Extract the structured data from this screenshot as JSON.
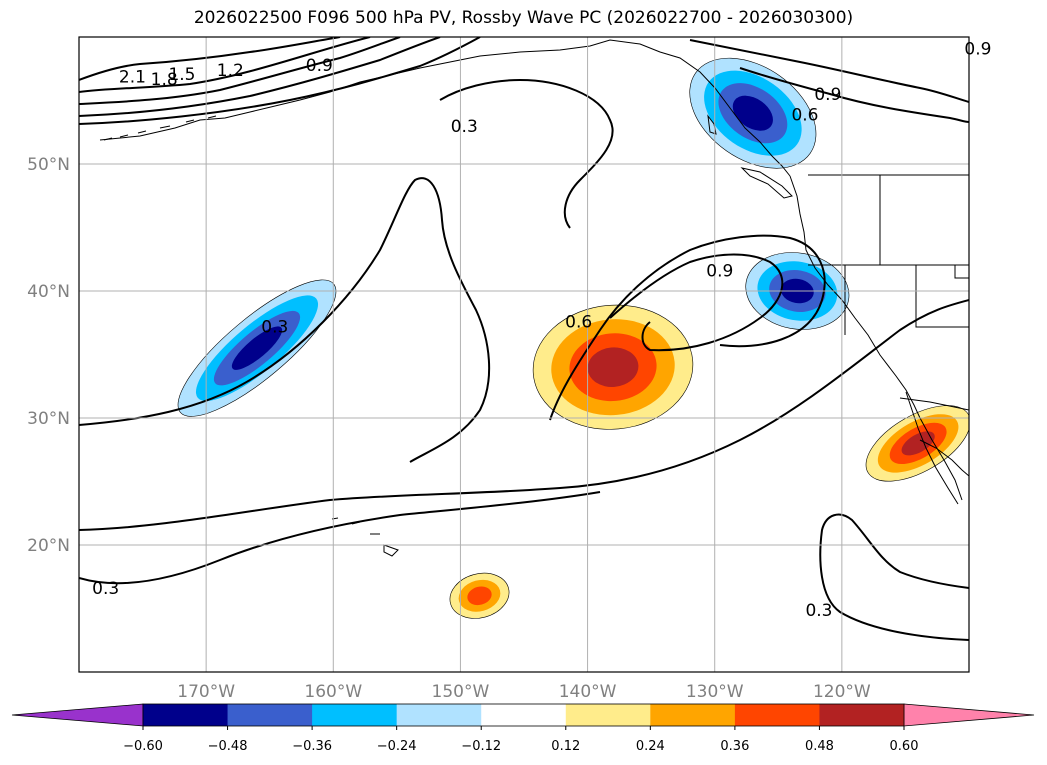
{
  "title": "2026022500 F096 500 hPa PV, Rossby Wave PC (2026022700 - 2026030300)",
  "chart_data": {
    "type": "map-contour",
    "title": "2026022500 F096 500 hPa PV, Rossby Wave PC (2026022700 - 2026030300)",
    "lon_range": [
      -180,
      -110
    ],
    "lat_range": [
      10,
      60
    ],
    "lon_ticks": [
      -170,
      -160,
      -150,
      -140,
      -130,
      -120
    ],
    "lon_tick_labels": [
      "170°W",
      "160°W",
      "150°W",
      "140°W",
      "130°W",
      "120°W"
    ],
    "lat_ticks": [
      20,
      30,
      40,
      50
    ],
    "lat_tick_labels": [
      "20°N",
      "30°N",
      "40°N",
      "50°N"
    ],
    "colorbar": {
      "levels": [
        -0.6,
        -0.48,
        -0.36,
        -0.24,
        -0.12,
        0.12,
        0.24,
        0.36,
        0.48,
        0.6
      ],
      "tick_labels": [
        "−0.60",
        "−0.48",
        "−0.36",
        "−0.24",
        "−0.12",
        "0.12",
        "0.24",
        "0.36",
        "0.48",
        "0.60"
      ],
      "colors": [
        "#9932cc",
        "#00008b",
        "#3a5fcd",
        "#00bfff",
        "#b0e2ff",
        "#ffffff",
        "#ffec8b",
        "#ffa500",
        "#ff4500",
        "#b22222",
        "#ff82ab"
      ],
      "extend": "both"
    },
    "contour_labels": [
      {
        "text": "2.1",
        "lon": -175.8,
        "lat": 56.9
      },
      {
        "text": "1.8",
        "lon": -173.3,
        "lat": 56.7
      },
      {
        "text": "1.5",
        "lon": -171.9,
        "lat": 57.1
      },
      {
        "text": "1.2",
        "lon": -168.1,
        "lat": 57.4
      },
      {
        "text": "0.9",
        "lon": -161.1,
        "lat": 57.8
      },
      {
        "text": "0.3",
        "lon": -149.7,
        "lat": 53.0
      },
      {
        "text": "0.9",
        "lon": -121.1,
        "lat": 55.5
      },
      {
        "text": "0.6",
        "lon": -122.9,
        "lat": 53.9
      },
      {
        "text": "0.9",
        "lon": -109.3,
        "lat": 59.1
      },
      {
        "text": "0.9",
        "lon": -129.6,
        "lat": 41.6
      },
      {
        "text": "0.6",
        "lon": -140.7,
        "lat": 37.6
      },
      {
        "text": "0.3",
        "lon": -164.6,
        "lat": 37.2
      },
      {
        "text": "0.3",
        "lon": -177.9,
        "lat": 16.6
      },
      {
        "text": "0.3",
        "lon": -121.8,
        "lat": 14.9
      }
    ],
    "features": [
      {
        "name": "negative PC anomaly, Gulf of Alaska / BC coast",
        "sign": "negative",
        "min": -0.48,
        "lon": -127,
        "lat": 54
      },
      {
        "name": "negative PC anomaly, Pacific Northwest",
        "sign": "negative",
        "min": -0.6,
        "lon": -123.5,
        "lat": 40
      },
      {
        "name": "negative PC anomaly, central Pacific jet",
        "sign": "negative",
        "min": -0.6,
        "lon": -166,
        "lat": 35.5
      },
      {
        "name": "positive PC anomaly, NE Pacific",
        "sign": "positive",
        "max": 0.48,
        "lon": -138,
        "lat": 34
      },
      {
        "name": "positive PC anomaly, Baja / Mexico",
        "sign": "positive",
        "max": 0.48,
        "lon": -114,
        "lat": 28
      },
      {
        "name": "positive PC anomaly, near Hawaii",
        "sign": "positive",
        "max": 0.36,
        "lon": -148.5,
        "lat": 16
      }
    ]
  }
}
